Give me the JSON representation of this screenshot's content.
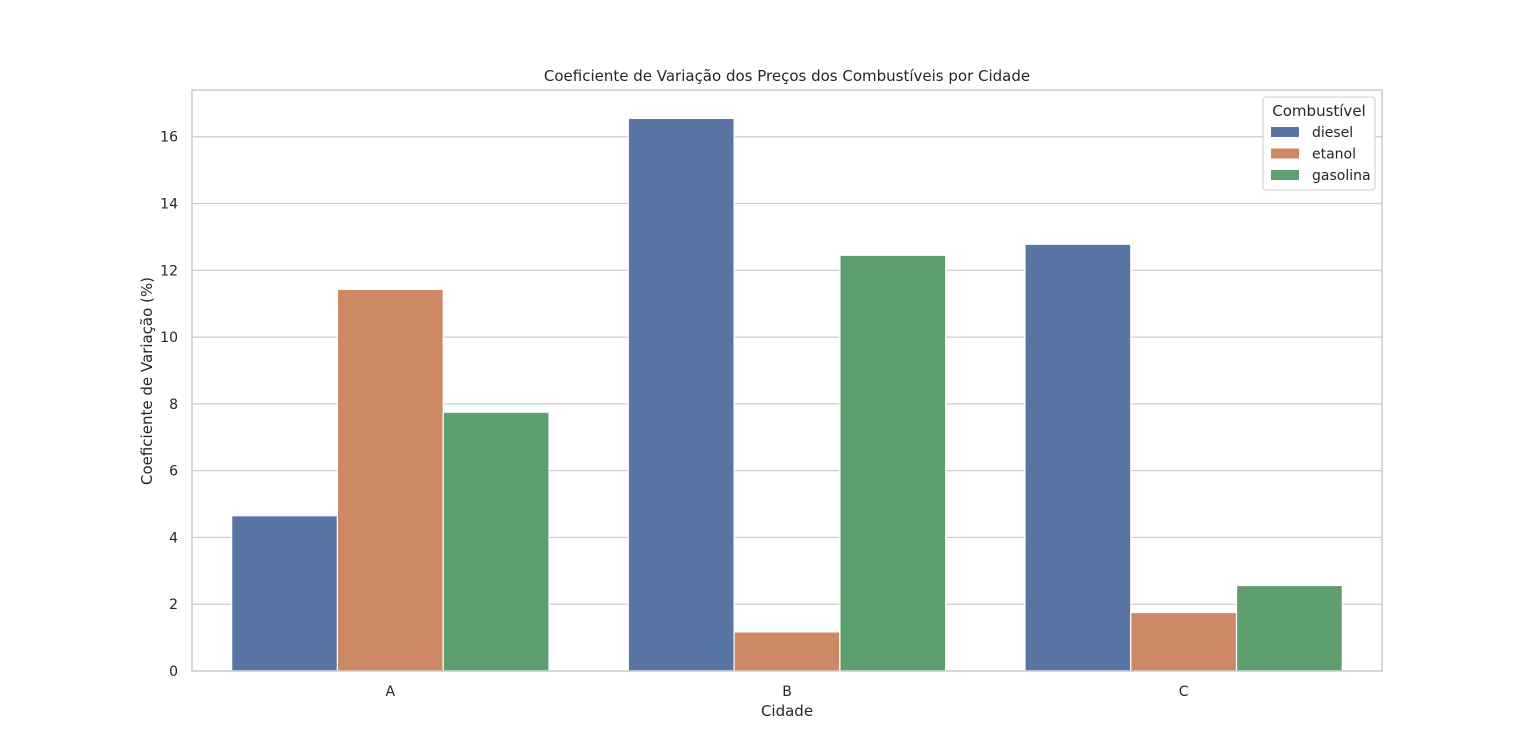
{
  "chart_data": {
    "type": "bar",
    "title": "Coeficiente de Variação dos Preços dos Combustíveis por Cidade",
    "xlabel": "Cidade",
    "ylabel": "Coeficiente de Variação (%)",
    "categories": [
      "A",
      "B",
      "C"
    ],
    "series": [
      {
        "name": "diesel",
        "color": "#5875a4",
        "values": [
          4.65,
          16.55,
          12.78
        ]
      },
      {
        "name": "etanol",
        "color": "#cc8963",
        "values": [
          11.43,
          1.17,
          1.75
        ]
      },
      {
        "name": "gasolina",
        "color": "#5f9e6e",
        "values": [
          7.75,
          12.45,
          2.56
        ]
      }
    ],
    "ylim": [
      0,
      17.4
    ],
    "yticks": [
      0,
      2,
      4,
      6,
      8,
      10,
      12,
      14,
      16
    ],
    "grid": true,
    "legend": {
      "title": "Combustível",
      "placement": "top-right"
    }
  }
}
